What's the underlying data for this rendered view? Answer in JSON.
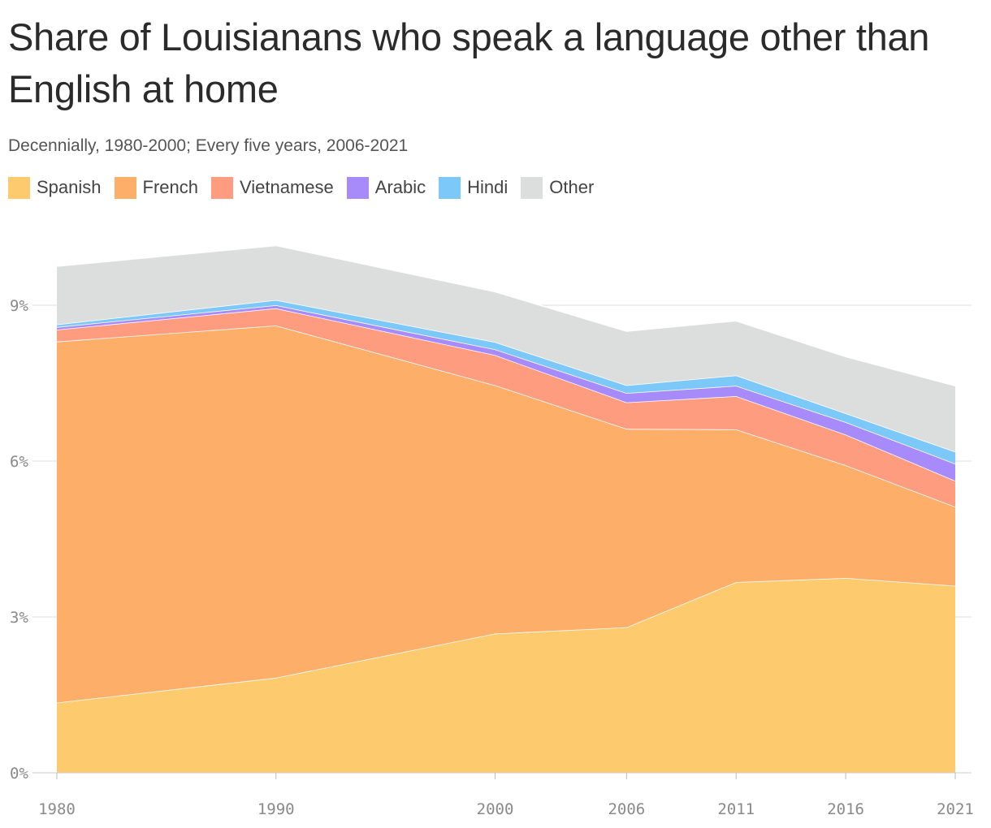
{
  "chart_data": {
    "type": "area",
    "stacked": true,
    "title": "Share of Louisianans who speak a language other than English at home",
    "subtitle": "Decennially, 1980-2000; Every five years, 2006-2021",
    "x": [
      1980,
      1990,
      2000,
      2006,
      2011,
      2016,
      2021
    ],
    "x_tick_labels": [
      "1980",
      "1990",
      "2000",
      "2006",
      "2011",
      "2016",
      "2021"
    ],
    "y_ticks": [
      0,
      3,
      6,
      9
    ],
    "y_tick_labels": [
      "0%",
      "3%",
      "6%",
      "9%"
    ],
    "ylim": [
      0,
      10.5
    ],
    "y_unit": "%",
    "grid": true,
    "legend_position": "top-left",
    "series": [
      {
        "name": "Spanish",
        "color": "#fdcb6e",
        "values": [
          1.35,
          1.83,
          2.68,
          2.8,
          3.67,
          3.75,
          3.6
        ]
      },
      {
        "name": "French",
        "color": "#fdaf6a",
        "values": [
          6.95,
          6.78,
          4.78,
          3.82,
          2.94,
          2.17,
          1.52
        ]
      },
      {
        "name": "Vietnamese",
        "color": "#fe9c80",
        "values": [
          0.23,
          0.33,
          0.58,
          0.51,
          0.64,
          0.59,
          0.5
        ]
      },
      {
        "name": "Arabic",
        "color": "#a78bfa",
        "values": [
          0.05,
          0.06,
          0.11,
          0.18,
          0.2,
          0.24,
          0.33
        ]
      },
      {
        "name": "Hindi",
        "color": "#7cc8f8",
        "values": [
          0.05,
          0.1,
          0.14,
          0.15,
          0.2,
          0.17,
          0.23
        ]
      },
      {
        "name": "Other",
        "color": "#dcdedd",
        "values": [
          1.12,
          1.05,
          0.97,
          1.04,
          1.05,
          1.09,
          1.27
        ]
      }
    ]
  }
}
